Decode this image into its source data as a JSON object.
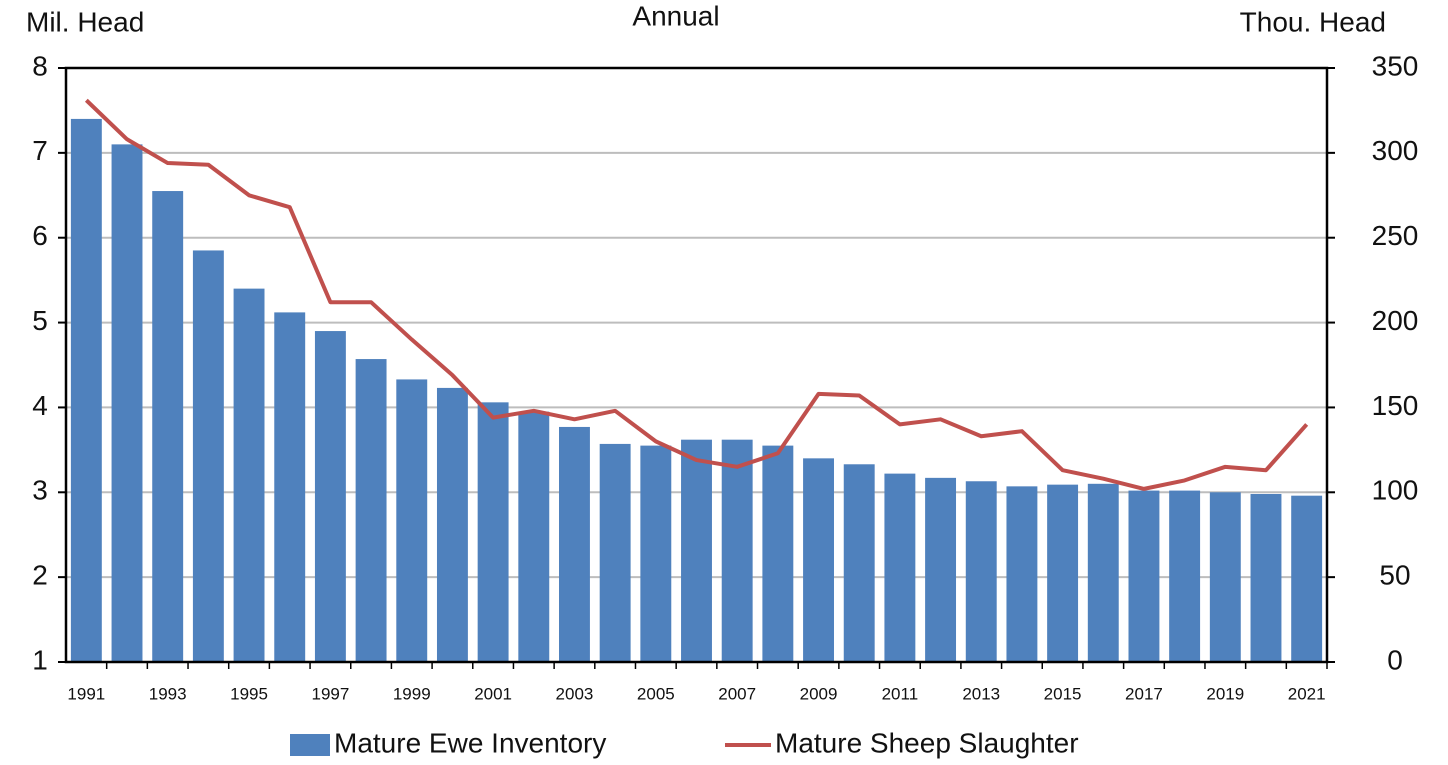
{
  "chart_data": {
    "type": "bar",
    "title": "Annual",
    "y_label": "Mil. Head",
    "y2_label": "Thou. Head",
    "categories": [
      "1991",
      null,
      "1993",
      null,
      "1995",
      null,
      "1997",
      null,
      "1999",
      null,
      "2001",
      null,
      "2003",
      null,
      "2005",
      null,
      "2007",
      null,
      "2009",
      null,
      "2011",
      null,
      "2013",
      null,
      "2015",
      null,
      "2017",
      null,
      "2019",
      null,
      "2021"
    ],
    "series": [
      {
        "name": "Mature Ewe Inventory",
        "type": "bar",
        "color": "#4f81bd",
        "values": [
          7.4,
          7.1,
          6.55,
          5.85,
          5.4,
          5.12,
          4.9,
          4.57,
          4.33,
          4.23,
          4.06,
          3.95,
          3.77,
          3.57,
          3.55,
          3.62,
          3.62,
          3.55,
          3.4,
          3.33,
          3.22,
          3.17,
          3.13,
          3.07,
          3.09,
          3.1,
          3.02,
          3.02,
          3.0,
          2.98,
          2.96
        ]
      },
      {
        "name": "Mature Sheep Slaughter",
        "type": "line",
        "axis": "y2",
        "color": "#c0504d",
        "values": [
          331,
          308,
          294,
          293,
          275,
          268,
          212,
          212,
          190,
          169,
          144,
          148,
          143,
          148,
          130,
          119,
          115,
          123,
          158,
          157,
          140,
          143,
          133,
          136,
          113,
          108,
          102,
          107,
          115,
          113,
          140
        ]
      }
    ],
    "ylim": [
      1,
      8
    ],
    "yticks": [
      1,
      2,
      3,
      4,
      5,
      6,
      7,
      8
    ],
    "y2lim": [
      0,
      350
    ],
    "y2ticks": [
      0,
      50,
      100,
      150,
      200,
      250,
      300,
      350
    ],
    "grid": true,
    "legend": "bottom"
  }
}
